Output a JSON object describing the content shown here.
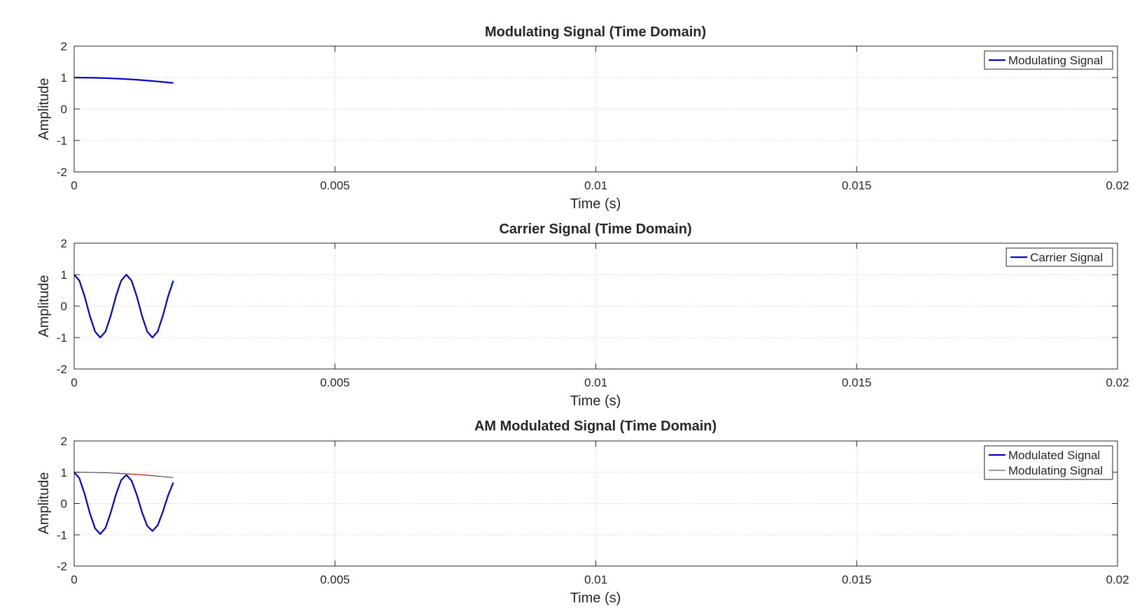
{
  "figure": {
    "background": "#ffffff",
    "axis_color": "#262626",
    "grid_color": "#d9d9d9"
  },
  "chart_data": [
    {
      "type": "line",
      "title": "Modulating Signal (Time Domain)",
      "xlabel": "Time (s)",
      "ylabel": "Amplitude",
      "xlim": [
        0,
        0.02
      ],
      "ylim": [
        -2,
        2
      ],
      "xticks": [
        0,
        0.005,
        0.01,
        0.015,
        0.02
      ],
      "xtick_labels": [
        "0",
        "0.005",
        "0.01",
        "0.015",
        "0.02"
      ],
      "yticks": [
        -2,
        -1,
        0,
        1,
        2
      ],
      "ytick_labels": [
        "-2",
        "-1",
        "0",
        "1",
        "2"
      ],
      "grid": true,
      "legend_position": "top-right",
      "series": [
        {
          "name": "Modulating Signal",
          "color": "#0000cc",
          "width": 2.2,
          "x": [
            0,
            0.0002,
            0.0004,
            0.0006,
            0.0008,
            0.001,
            0.0012,
            0.0014,
            0.0016,
            0.0018,
            0.0019
          ],
          "y": [
            1.0,
            0.998,
            0.992,
            0.982,
            0.968,
            0.951,
            0.93,
            0.905,
            0.876,
            0.844,
            0.827
          ]
        }
      ]
    },
    {
      "type": "line",
      "title": "Carrier Signal (Time Domain)",
      "xlabel": "Time (s)",
      "ylabel": "Amplitude",
      "xlim": [
        0,
        0.02
      ],
      "ylim": [
        -2,
        2
      ],
      "xticks": [
        0,
        0.005,
        0.01,
        0.015,
        0.02
      ],
      "xtick_labels": [
        "0",
        "0.005",
        "0.01",
        "0.015",
        "0.02"
      ],
      "yticks": [
        -2,
        -1,
        0,
        1,
        2
      ],
      "ytick_labels": [
        "-2",
        "-1",
        "0",
        "1",
        "2"
      ],
      "grid": true,
      "legend_position": "top-right",
      "series": [
        {
          "name": "Carrier Signal",
          "color": "#0000cc",
          "width": 2.2,
          "x": [
            0,
            0.0001,
            0.0002,
            0.0003,
            0.0004,
            0.0005,
            0.0006,
            0.0007,
            0.0008,
            0.0009,
            0.001,
            0.0011,
            0.0012,
            0.0013,
            0.0014,
            0.0015,
            0.0016,
            0.0017,
            0.0018,
            0.0019
          ],
          "y": [
            1.0,
            0.809,
            0.309,
            -0.309,
            -0.809,
            -1.0,
            -0.809,
            -0.309,
            0.309,
            0.809,
            1.0,
            0.809,
            0.309,
            -0.309,
            -0.809,
            -1.0,
            -0.809,
            -0.309,
            0.309,
            0.809
          ]
        }
      ]
    },
    {
      "type": "line",
      "title": "AM Modulated Signal (Time Domain)",
      "xlabel": "Time (s)",
      "ylabel": "Amplitude",
      "xlim": [
        0,
        0.02
      ],
      "ylim": [
        -2,
        2
      ],
      "xticks": [
        0,
        0.005,
        0.01,
        0.015,
        0.02
      ],
      "xtick_labels": [
        "0",
        "0.005",
        "0.01",
        "0.015",
        "0.02"
      ],
      "yticks": [
        -2,
        -1,
        0,
        1,
        2
      ],
      "ytick_labels": [
        "-2",
        "-1",
        "0",
        "1",
        "2"
      ],
      "grid": true,
      "legend_position": "top-right",
      "series": [
        {
          "name": "Modulated Signal",
          "color": "#0000cc",
          "width": 2.2,
          "x": [
            0,
            0.0001,
            0.0002,
            0.0003,
            0.0004,
            0.0005,
            0.0006,
            0.0007,
            0.0008,
            0.0009,
            0.001,
            0.0011,
            0.0012,
            0.0013,
            0.0014,
            0.0015,
            0.0016,
            0.0017,
            0.0018,
            0.0019
          ],
          "y": [
            1.0,
            0.808,
            0.308,
            -0.306,
            -0.794,
            -0.976,
            -0.779,
            -0.292,
            0.287,
            0.745,
            0.914,
            0.733,
            0.28,
            -0.277,
            -0.718,
            -0.876,
            -0.7,
            -0.26,
            0.26,
            0.67
          ]
        },
        {
          "name": "Modulating Signal",
          "color": "#333333",
          "width": 1.0,
          "x": [
            0,
            0.0002,
            0.0004,
            0.0006,
            0.0008,
            0.001,
            0.0012,
            0.0014,
            0.0016,
            0.0018,
            0.0019
          ],
          "y": [
            1.0,
            0.998,
            0.992,
            0.982,
            0.968,
            0.951,
            0.93,
            0.905,
            0.876,
            0.844,
            0.827
          ]
        },
        {
          "color": "#dd0000",
          "width": 1.0,
          "x": [
            0.0008,
            0.001,
            0.0012,
            0.0014,
            0.0016
          ],
          "y": [
            0.968,
            0.951,
            0.93,
            0.905,
            0.876
          ]
        }
      ]
    }
  ]
}
